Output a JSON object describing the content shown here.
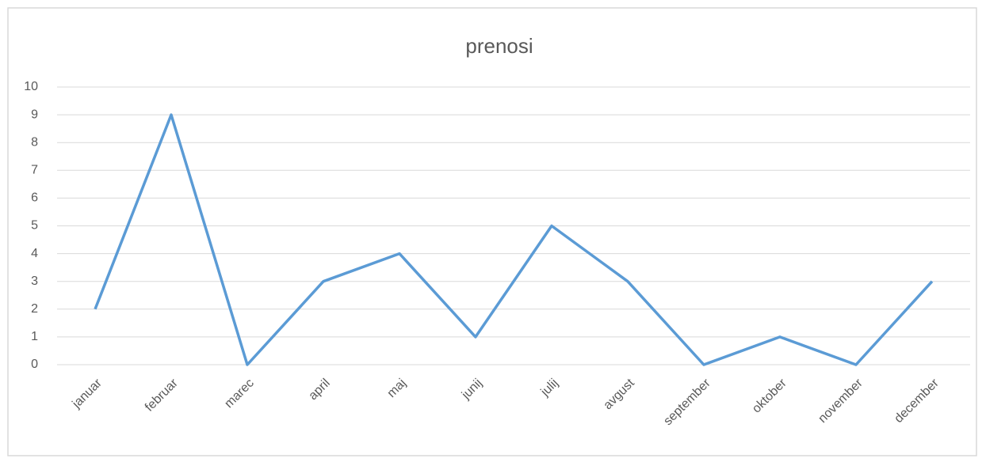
{
  "chart_data": {
    "type": "line",
    "title": "prenosi",
    "categories": [
      "januar",
      "februar",
      "marec",
      "april",
      "maj",
      "junij",
      "julij",
      "avgust",
      "september",
      "oktober",
      "november",
      "december"
    ],
    "series": [
      {
        "name": "prenosi",
        "color": "#5b9bd5",
        "values": [
          2,
          9,
          0,
          3,
          4,
          1,
          5,
          3,
          0,
          1,
          0,
          3
        ]
      }
    ],
    "ylim": [
      0,
      10
    ],
    "yticks": [
      0,
      1,
      2,
      3,
      4,
      5,
      6,
      7,
      8,
      9,
      10
    ],
    "grid": true
  }
}
